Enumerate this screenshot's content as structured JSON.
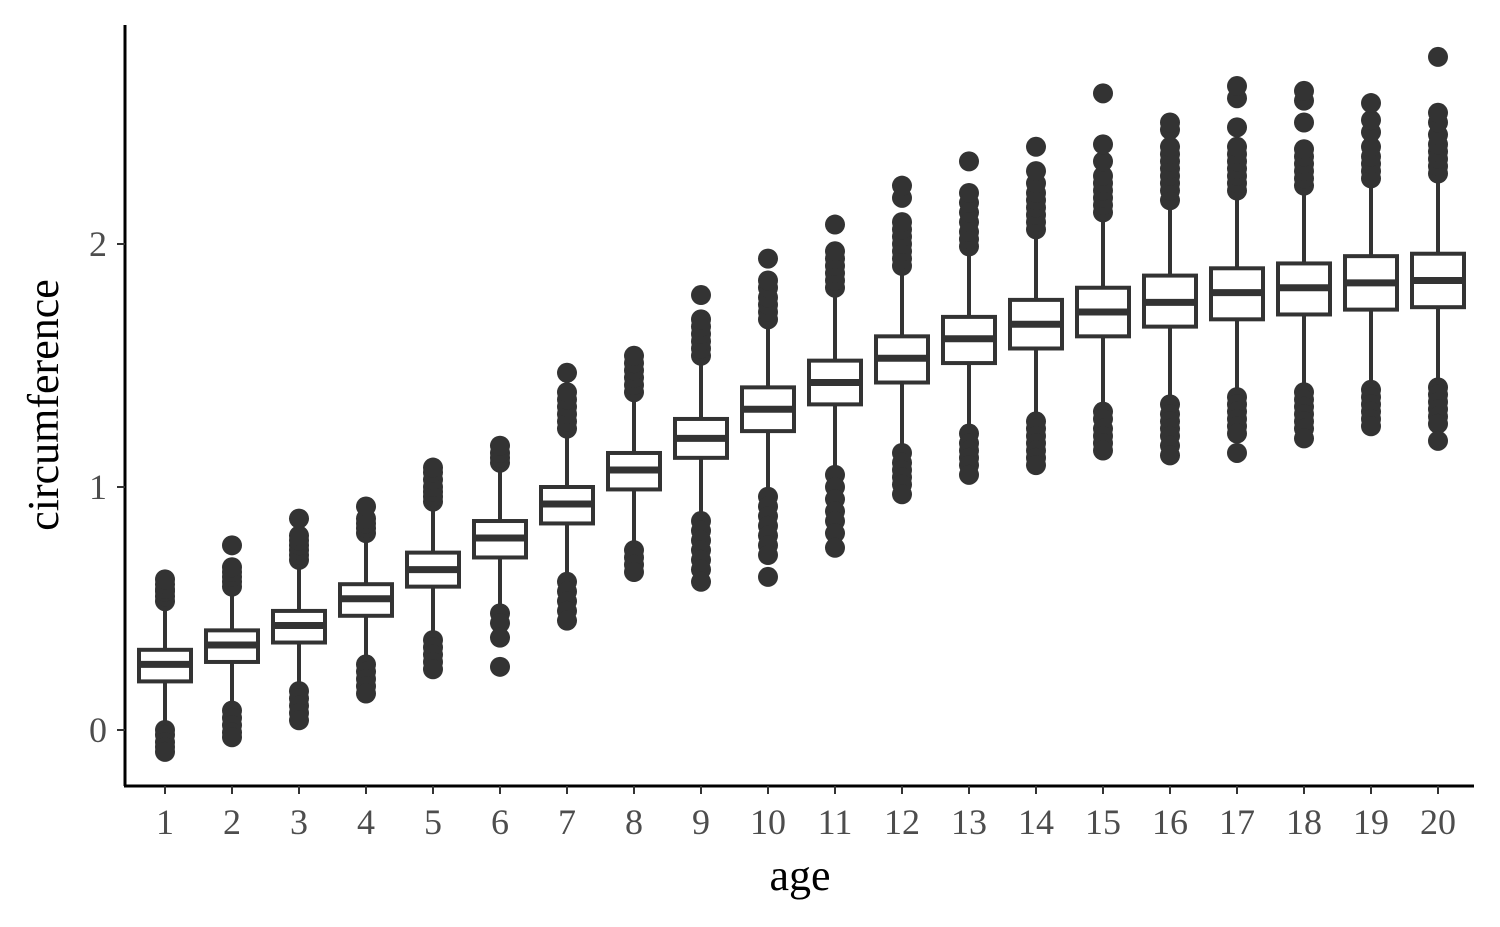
{
  "chart_data": {
    "type": "boxplot",
    "xlabel": "age",
    "ylabel": "circumference",
    "ylim": [
      -0.23,
      2.9
    ],
    "y_ticks": [
      0,
      1,
      2
    ],
    "grid": false,
    "legend": "none",
    "colors": {
      "stroke": "#333333",
      "fill": "#ffffff",
      "tick_label": "#4d4d4d"
    },
    "categories": [
      "1",
      "2",
      "3",
      "4",
      "5",
      "6",
      "7",
      "8",
      "9",
      "10",
      "11",
      "12",
      "13",
      "14",
      "15",
      "16",
      "17",
      "18",
      "19",
      "20"
    ],
    "boxes": [
      {
        "q1": 0.2,
        "median": 0.27,
        "q3": 0.33,
        "low": 0.02,
        "high": 0.52,
        "outliers": [
          0.53,
          0.55,
          0.57,
          0.58,
          0.6,
          0.62,
          0.0,
          -0.02,
          -0.05,
          -0.07,
          -0.09
        ]
      },
      {
        "q1": 0.28,
        "median": 0.35,
        "q3": 0.41,
        "low": 0.1,
        "high": 0.57,
        "outliers": [
          0.59,
          0.61,
          0.63,
          0.65,
          0.67,
          0.76,
          0.08,
          0.05,
          0.02,
          -0.01,
          -0.03
        ]
      },
      {
        "q1": 0.36,
        "median": 0.43,
        "q3": 0.49,
        "low": 0.17,
        "high": 0.68,
        "outliers": [
          0.7,
          0.72,
          0.74,
          0.76,
          0.78,
          0.8,
          0.87,
          0.16,
          0.13,
          0.1,
          0.07,
          0.04
        ]
      },
      {
        "q1": 0.47,
        "median": 0.54,
        "q3": 0.6,
        "low": 0.28,
        "high": 0.79,
        "outliers": [
          0.81,
          0.83,
          0.85,
          0.87,
          0.92,
          0.27,
          0.24,
          0.21,
          0.18,
          0.15
        ]
      },
      {
        "q1": 0.59,
        "median": 0.66,
        "q3": 0.73,
        "low": 0.39,
        "high": 0.92,
        "outliers": [
          0.94,
          0.96,
          0.98,
          1.0,
          1.03,
          1.06,
          1.08,
          0.37,
          0.34,
          0.31,
          0.28,
          0.25
        ]
      },
      {
        "q1": 0.71,
        "median": 0.79,
        "q3": 0.86,
        "low": 0.5,
        "high": 1.08,
        "outliers": [
          1.1,
          1.12,
          1.14,
          1.17,
          0.48,
          0.44,
          0.38,
          0.26
        ]
      },
      {
        "q1": 0.85,
        "median": 0.93,
        "q3": 1.0,
        "low": 0.62,
        "high": 1.22,
        "outliers": [
          1.24,
          1.27,
          1.3,
          1.33,
          1.36,
          1.39,
          1.47,
          0.61,
          0.57,
          0.53,
          0.49,
          0.45
        ]
      },
      {
        "q1": 0.99,
        "median": 1.07,
        "q3": 1.14,
        "low": 0.76,
        "high": 1.37,
        "outliers": [
          1.39,
          1.42,
          1.45,
          1.48,
          1.51,
          1.54,
          0.74,
          0.71,
          0.68,
          0.65
        ]
      },
      {
        "q1": 1.12,
        "median": 1.2,
        "q3": 1.28,
        "low": 0.88,
        "high": 1.52,
        "outliers": [
          1.54,
          1.57,
          1.6,
          1.63,
          1.66,
          1.69,
          1.79,
          0.86,
          0.82,
          0.78,
          0.74,
          0.7,
          0.66,
          0.61
        ]
      },
      {
        "q1": 1.23,
        "median": 1.32,
        "q3": 1.41,
        "low": 0.97,
        "high": 1.67,
        "outliers": [
          1.69,
          1.72,
          1.75,
          1.78,
          1.82,
          1.85,
          1.94,
          0.96,
          0.92,
          0.88,
          0.84,
          0.8,
          0.76,
          0.72,
          0.63
        ]
      },
      {
        "q1": 1.34,
        "median": 1.43,
        "q3": 1.52,
        "low": 1.08,
        "high": 1.8,
        "outliers": [
          1.82,
          1.85,
          1.88,
          1.91,
          1.94,
          1.97,
          2.08,
          1.05,
          1.0,
          0.95,
          0.9,
          0.86,
          0.81,
          0.75
        ]
      },
      {
        "q1": 1.43,
        "median": 1.53,
        "q3": 1.62,
        "low": 1.16,
        "high": 1.89,
        "outliers": [
          1.91,
          1.94,
          1.97,
          2.0,
          2.03,
          2.06,
          2.09,
          2.19,
          2.24,
          1.14,
          1.1,
          1.07,
          1.04,
          1.01,
          0.97
        ]
      },
      {
        "q1": 1.51,
        "median": 1.61,
        "q3": 1.7,
        "low": 1.24,
        "high": 1.97,
        "outliers": [
          1.99,
          2.02,
          2.05,
          2.09,
          2.13,
          2.17,
          2.21,
          2.34,
          1.22,
          1.18,
          1.15,
          1.12,
          1.09,
          1.05
        ]
      },
      {
        "q1": 1.57,
        "median": 1.67,
        "q3": 1.77,
        "low": 1.29,
        "high": 2.04,
        "outliers": [
          2.06,
          2.09,
          2.12,
          2.15,
          2.18,
          2.21,
          2.25,
          2.3,
          2.4,
          1.27,
          1.24,
          1.21,
          1.18,
          1.15,
          1.12,
          1.09
        ]
      },
      {
        "q1": 1.62,
        "median": 1.72,
        "q3": 1.82,
        "low": 1.33,
        "high": 2.11,
        "outliers": [
          2.13,
          2.16,
          2.19,
          2.22,
          2.25,
          2.28,
          2.34,
          2.41,
          2.62,
          1.31,
          1.28,
          1.24,
          1.21,
          1.18,
          1.15
        ]
      },
      {
        "q1": 1.66,
        "median": 1.76,
        "q3": 1.87,
        "low": 1.36,
        "high": 2.16,
        "outliers": [
          2.18,
          2.22,
          2.25,
          2.28,
          2.31,
          2.34,
          2.37,
          2.4,
          2.47,
          2.5,
          1.34,
          1.3,
          1.27,
          1.24,
          1.21,
          1.17,
          1.13
        ]
      },
      {
        "q1": 1.69,
        "median": 1.8,
        "q3": 1.9,
        "low": 1.39,
        "high": 2.2,
        "outliers": [
          2.22,
          2.25,
          2.28,
          2.31,
          2.34,
          2.37,
          2.4,
          2.48,
          2.6,
          2.65,
          1.37,
          1.34,
          1.31,
          1.28,
          1.25,
          1.22,
          1.14
        ]
      },
      {
        "q1": 1.71,
        "median": 1.82,
        "q3": 1.92,
        "low": 1.41,
        "high": 2.22,
        "outliers": [
          2.24,
          2.27,
          2.3,
          2.33,
          2.36,
          2.39,
          2.5,
          2.59,
          2.63,
          1.39,
          1.36,
          1.33,
          1.3,
          1.27,
          1.24,
          1.2
        ]
      },
      {
        "q1": 1.73,
        "median": 1.84,
        "q3": 1.95,
        "low": 1.42,
        "high": 2.25,
        "outliers": [
          2.27,
          2.3,
          2.33,
          2.36,
          2.4,
          2.46,
          2.51,
          2.58,
          1.4,
          1.37,
          1.34,
          1.31,
          1.28,
          1.25
        ]
      },
      {
        "q1": 1.74,
        "median": 1.85,
        "q3": 1.96,
        "low": 1.43,
        "high": 2.27,
        "outliers": [
          2.29,
          2.32,
          2.35,
          2.38,
          2.41,
          2.45,
          2.5,
          2.54,
          2.77,
          1.41,
          1.38,
          1.35,
          1.32,
          1.29,
          1.26,
          1.19
        ]
      }
    ]
  }
}
